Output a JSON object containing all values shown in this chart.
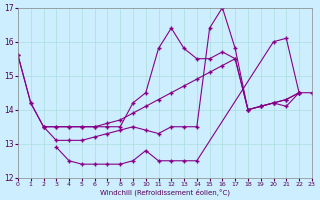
{
  "xlabel": "Windchill (Refroidissement éolien,°C)",
  "background_color": "#cceeff",
  "line_color": "#880088",
  "grid_color": "#aadddd",
  "xlim": [
    0,
    23
  ],
  "ylim": [
    12,
    17
  ],
  "yticks": [
    12,
    13,
    14,
    15,
    16,
    17
  ],
  "xticks": [
    0,
    1,
    2,
    3,
    4,
    5,
    6,
    7,
    8,
    9,
    10,
    11,
    12,
    13,
    14,
    15,
    16,
    17,
    18,
    19,
    20,
    21,
    22,
    23
  ],
  "series1_x": [
    0,
    1,
    2,
    3,
    4,
    5,
    6,
    7,
    8,
    9,
    10,
    11,
    12,
    13,
    14,
    15,
    16,
    17,
    18,
    19,
    20,
    21,
    22
  ],
  "series1_y": [
    15.6,
    14.2,
    13.5,
    13.5,
    13.5,
    13.5,
    13.5,
    13.6,
    13.7,
    13.9,
    14.1,
    14.3,
    14.5,
    14.7,
    14.9,
    15.1,
    15.3,
    15.5,
    14.0,
    14.1,
    14.2,
    14.3,
    14.5
  ],
  "series2_x": [
    0,
    1,
    2,
    3,
    4,
    5,
    6,
    7,
    8,
    9,
    10,
    11,
    12,
    13,
    14,
    15,
    16,
    17,
    18,
    19,
    20,
    21,
    22
  ],
  "series2_y": [
    15.6,
    14.2,
    13.5,
    13.1,
    13.1,
    13.1,
    13.2,
    13.3,
    13.4,
    13.5,
    13.4,
    13.3,
    13.5,
    13.5,
    13.5,
    16.4,
    17.0,
    15.8,
    14.0,
    14.1,
    14.2,
    14.1,
    14.5
  ],
  "series3_x": [
    2,
    3,
    4,
    5,
    6,
    7,
    8,
    9,
    10,
    11,
    12,
    13,
    14,
    15,
    16,
    17,
    18,
    19,
    20,
    21,
    22
  ],
  "series3_y": [
    13.5,
    13.5,
    13.5,
    13.5,
    13.5,
    13.5,
    13.5,
    14.2,
    14.5,
    15.8,
    16.4,
    15.8,
    15.5,
    15.5,
    15.7,
    15.5,
    14.0,
    14.1,
    14.2,
    14.3,
    14.5
  ],
  "series4_x": [
    3,
    4,
    5,
    6,
    7,
    8,
    9,
    10,
    11,
    12,
    13,
    14,
    20,
    21,
    22,
    23
  ],
  "series4_y": [
    12.9,
    12.5,
    12.4,
    12.4,
    12.4,
    12.4,
    12.5,
    12.8,
    12.5,
    12.5,
    12.5,
    12.5,
    16.0,
    16.1,
    14.5,
    14.5
  ]
}
